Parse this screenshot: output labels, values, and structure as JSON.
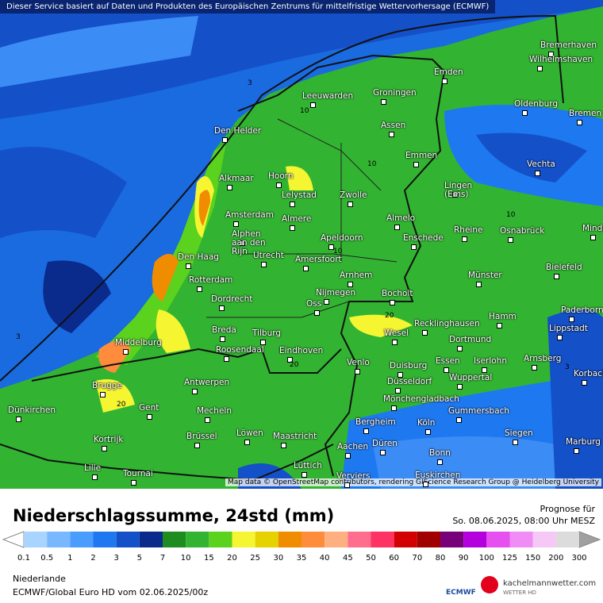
{
  "header": {
    "notice": "Dieser Service basiert auf Daten und Produkten des Europäischen Zentrums für mittelfristige Wettervorhersage (ECMWF)"
  },
  "map": {
    "attribution": "Map data © OpenStreetMap contributors, rendering GIScience Research Group @ Heidelberg University",
    "cities": [
      "Bremerhaven",
      "Wilhelmshaven",
      "Emden",
      "Leeuwarden",
      "Groningen",
      "Oldenburg",
      "Bremen",
      "Den Helder",
      "Assen",
      "Emmen",
      "Vechta",
      "Alkmaar",
      "Hoorn",
      "Lelystad",
      "Zwolle",
      "Lingen\n(Ems)",
      "Amsterdam",
      "Almere",
      "Almelo",
      "Minden",
      "Rheine",
      "Osnabrück",
      "Alphen\naan den\nRijn",
      "Apeldoorn",
      "Enschede",
      "Utrecht",
      "Amersfoort",
      "Den Haag",
      "Bielefeld",
      "Rotterdam",
      "Arnhem",
      "Münster",
      "Dordrecht",
      "Nijmegen",
      "Bocholt",
      "Oss",
      "Hamm",
      "Paderborn",
      "Lippstadt",
      "Recklinghausen",
      "Breda",
      "Tilburg",
      "Wesel",
      "Middelburg",
      "Dortmund",
      "Roosendaal",
      "Eindhoven",
      "Arnsberg",
      "Venlo",
      "Essen",
      "Iserlohn",
      "Duisburg",
      "Korbach",
      "Wuppertal",
      "Antwerpen",
      "Brugge",
      "Düsseldorf",
      "Mönchengladbach",
      "Dünkirchen",
      "Gent",
      "Mecheln",
      "Gummersbach",
      "Bergheim",
      "Köln",
      "Siegen",
      "Brüssel",
      "Löwen",
      "Maastricht",
      "Kortrijk",
      "Düren",
      "Marburg",
      "Aachen",
      "Bonn",
      "Lille",
      "Tournai",
      "Lüttich",
      "Verviers",
      "Euskirchen"
    ],
    "contour_labels": [
      "10",
      "10",
      "10",
      "10",
      "20",
      "20",
      "20",
      "3",
      "3",
      "3"
    ]
  },
  "legend": {
    "title": "Niederschlagssumme, 24std (mm)",
    "forecast_label": "Prognose für",
    "forecast_time": "So. 08.06.2025, 08:00 Uhr MESZ",
    "labels": [
      "0.1",
      "0.5",
      "1",
      "2",
      "3",
      "5",
      "7",
      "10",
      "15",
      "20",
      "25",
      "30",
      "35",
      "40",
      "45",
      "50",
      "60",
      "70",
      "80",
      "90",
      "100",
      "125",
      "150",
      "200",
      "300"
    ],
    "colors": [
      "#a8d4ff",
      "#78b8ff",
      "#4a9cff",
      "#2078f0",
      "#1450c8",
      "#0a2a8c",
      "#1e8c1e",
      "#32b432",
      "#5ad21e",
      "#f5f532",
      "#e6d200",
      "#f08c00",
      "#ff8c3c",
      "#ffb080",
      "#ff6e8c",
      "#ff3264",
      "#d20000",
      "#a00000",
      "#780078",
      "#b400dc",
      "#e650f0",
      "#f08cf5",
      "#f5c8f5",
      "#dcdcdc"
    ],
    "below_color": "#ffffff",
    "above_color": "#a0a0a0"
  },
  "footer": {
    "region": "Niederlande",
    "model": "ECMWF/Global Euro HD vom  02.06.2025/00z",
    "logo_ecmwf": "ECMWF",
    "logo_site": "kachelmannwetter.com",
    "logo_sub": "WETTER HD"
  }
}
